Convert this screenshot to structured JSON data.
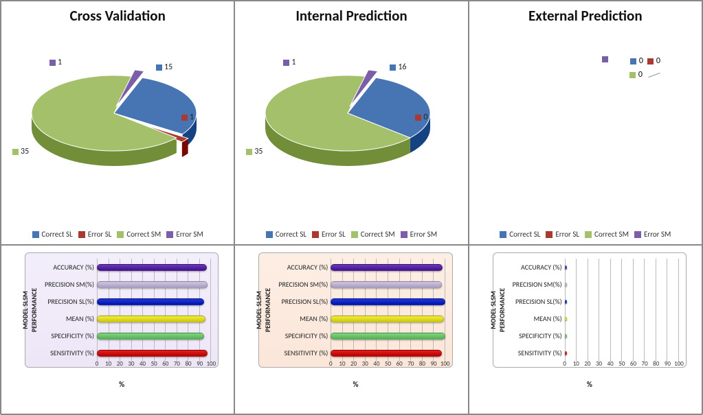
{
  "colors": {
    "correct_sl": "#4774b2",
    "error_sl": "#a83a31",
    "correct_sm": "#a4c06a",
    "error_sm": "#7b5ea9"
  },
  "pie_legend_labels": {
    "correct_sl": "Correct SL",
    "error_sl": "Error SL",
    "correct_sm": "Correct SM",
    "error_sm": "Error SM"
  },
  "panels": [
    {
      "title": "Cross Validation",
      "type": "pie",
      "slices": {
        "correct_sl": 15,
        "error_sl": 1,
        "correct_sm": 35,
        "error_sm": 1
      },
      "bar_bg": "purple",
      "metrics": {
        "ACCURACY (%)": 96,
        "PRECISION SM(%)": 97,
        "PRECISION SL(%)": 94,
        "MEAN (%)": 95,
        "SPECIFICITY (%)": 94,
        "SENSITIVITY (%)": 97
      }
    },
    {
      "title": "Internal Prediction",
      "type": "pie",
      "slices": {
        "correct_sl": 16,
        "error_sl": 0,
        "correct_sm": 35,
        "error_sm": 1
      },
      "bar_bg": "peach",
      "metrics": {
        "ACCURACY (%)": 98,
        "PRECISION SM(%)": 97,
        "PRECISION SL(%)": 100,
        "MEAN (%)": 99,
        "SPECIFICITY (%)": 100,
        "SENSITIVITY (%)": 97
      }
    },
    {
      "title": "External Prediction",
      "type": "pie",
      "slices": {
        "correct_sl": 0,
        "error_sl": 0,
        "correct_sm": 0,
        "error_sm": 0
      },
      "bar_bg": "white",
      "metrics": {
        "ACCURACY (%)": 0,
        "PRECISION SM(%)": 0,
        "PRECISION SL(%)": 0,
        "MEAN (%)": 0,
        "SPECIFICITY (%)": 0,
        "SENSITIVITY (%)": 0
      }
    }
  ],
  "bar_chart": {
    "ylabel": "MODEL SLSM\nPERFORMANCE",
    "xaxis_title": "%",
    "xticks": [
      0,
      10,
      20,
      30,
      40,
      50,
      60,
      70,
      80,
      90,
      100
    ],
    "row_order": [
      "ACCURACY (%)",
      "PRECISION SM(%)",
      "PRECISION SL(%)",
      "MEAN (%)",
      "SPECIFICITY (%)",
      "SENSITIVITY (%)"
    ],
    "row_colors": {
      "ACCURACY (%)": "#6a39b8",
      "PRECISION SM(%)": "#d1c6e6",
      "PRECISION SL(%)": "#1f3ad6",
      "MEAN (%)": "#f4f03a",
      "SPECIFICITY (%)": "#7fd87f",
      "SENSITIVITY (%)": "#e02020"
    }
  }
}
